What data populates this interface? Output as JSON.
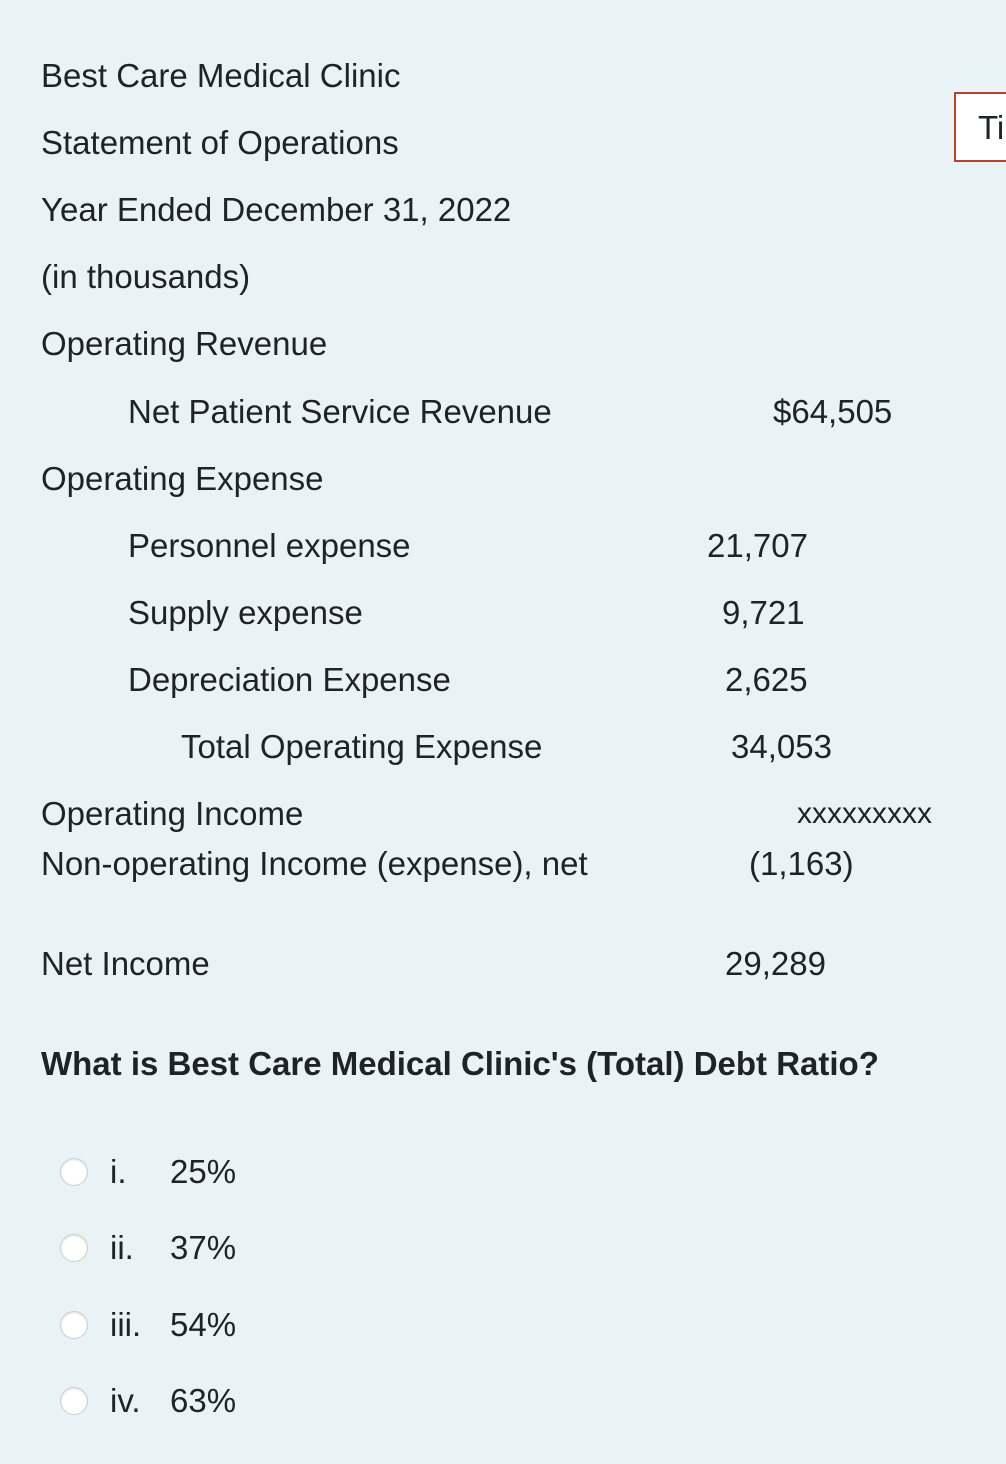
{
  "statement": {
    "company": "Best Care Medical Clinic",
    "title": "Statement of Operations",
    "period": "Year Ended December 31, 2022",
    "units": "(in thousands)",
    "revenue_heading": "Operating Revenue",
    "net_patient_label": "Net Patient Service Revenue",
    "net_patient_value": "$64,505",
    "expense_heading": "Operating Expense",
    "personnel_label": "Personnel expense",
    "personnel_value": "21,707",
    "supply_label": "Supply expense",
    "supply_value": "9,721",
    "depreciation_label": "Depreciation Expense",
    "depreciation_value": "2,625",
    "total_expense_label": "Total Operating Expense",
    "total_expense_value": "34,053",
    "operating_income_label": "Operating Income",
    "operating_income_value": "xxxxxxxxx",
    "nonop_label": "Non-operating Income (expense), net",
    "nonop_value": "(1,163)",
    "net_income_label": "Net Income",
    "net_income_value": "29,289"
  },
  "side_tab": {
    "label": "Ti"
  },
  "question": {
    "text": "What is Best Care Medical Clinic's (Total) Debt Ratio?",
    "options": [
      {
        "numeral": "i.",
        "value": "25%"
      },
      {
        "numeral": "ii.",
        "value": "37%"
      },
      {
        "numeral": "iii.",
        "value": "54%"
      },
      {
        "numeral": "iv.",
        "value": "63%"
      }
    ]
  }
}
